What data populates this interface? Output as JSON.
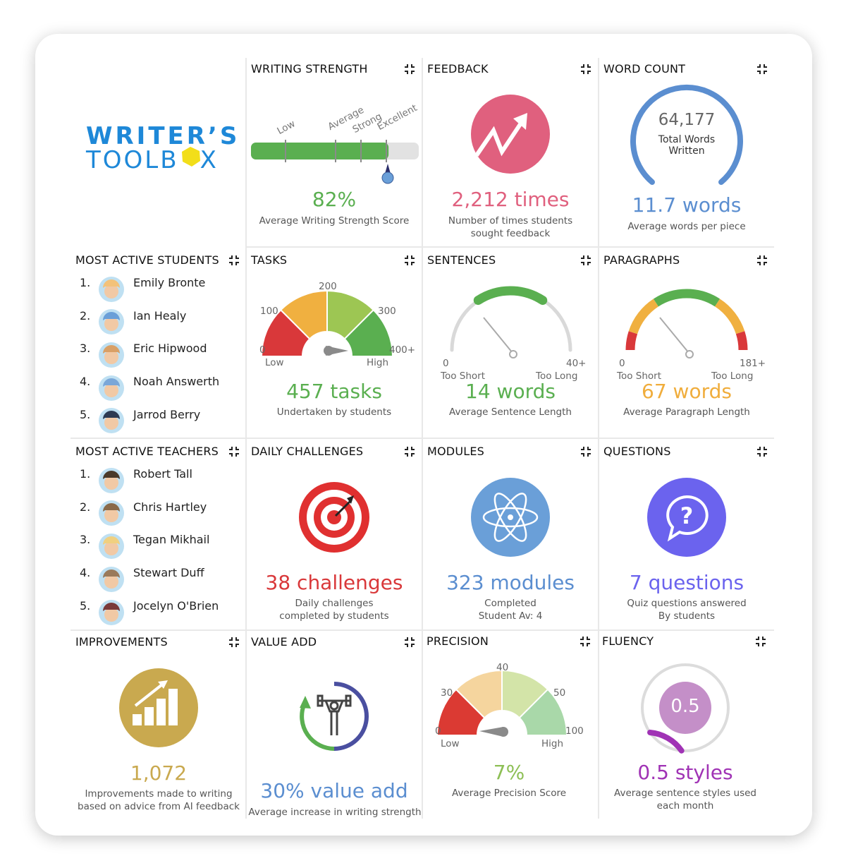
{
  "brand": {
    "line1": "WRITER’S",
    "line2_a": "TOOLB",
    "line2_b": "X",
    "color": "#1e88d8"
  },
  "colors": {
    "green": "#5aaf50",
    "red": "#d9383a",
    "orange": "#f0ad3c",
    "pink": "#e0607e",
    "blue": "#5b8ed0",
    "gold": "#c9a94f",
    "purple": "#a033b5",
    "violet": "#6b63ee"
  },
  "writing_strength": {
    "title": "WRITING STRENGTH",
    "labels": [
      "Low",
      "Average",
      "Strong",
      "Excellent"
    ],
    "value": "82%",
    "value_fraction": 0.82,
    "caption": "Average Writing Strength Score"
  },
  "feedback": {
    "title": "FEEDBACK",
    "icon": "trend-up-icon",
    "value": "2,212 times",
    "caption": "Number of times students sought feedback"
  },
  "word_count": {
    "title": "WORD COUNT",
    "total": "64,177",
    "total_label": "Total Words Written",
    "value": "11.7 words",
    "caption": "Average words per piece"
  },
  "students": {
    "title": "MOST ACTIVE STUDENTS",
    "items": [
      {
        "rank": "1.",
        "name": "Emily Bronte"
      },
      {
        "rank": "2.",
        "name": "Ian Healy"
      },
      {
        "rank": "3.",
        "name": "Eric Hipwood"
      },
      {
        "rank": "4.",
        "name": "Noah Answerth"
      },
      {
        "rank": "5.",
        "name": "Jarrod Berry"
      }
    ]
  },
  "tasks": {
    "title": "TASKS",
    "ticks": [
      "0",
      "100",
      "200",
      "300",
      "400+"
    ],
    "low": "Low",
    "high": "High",
    "value": "457 tasks",
    "caption": "Undertaken by students"
  },
  "sentences": {
    "title": "SENTENCES",
    "min": "0",
    "max": "40+",
    "low": "Too Short",
    "high": "Too Long",
    "value": "14 words",
    "caption": "Average Sentence Length"
  },
  "paragraphs": {
    "title": "PARAGRAPHS",
    "min": "0",
    "max": "181+",
    "low": "Too Short",
    "high": "Too Long",
    "value": "67 words",
    "caption": "Average Paragraph Length"
  },
  "teachers": {
    "title": "MOST ACTIVE TEACHERS",
    "items": [
      {
        "rank": "1.",
        "name": "Robert Tall"
      },
      {
        "rank": "2.",
        "name": "Chris Hartley"
      },
      {
        "rank": "3.",
        "name": "Tegan Mikhail"
      },
      {
        "rank": "4.",
        "name": "Stewart Duff"
      },
      {
        "rank": "5.",
        "name": "Jocelyn O'Brien"
      }
    ]
  },
  "daily_challenges": {
    "title": "DAILY CHALLENGES",
    "icon": "target-icon",
    "value": "38 challenges",
    "caption1": "Daily challenges",
    "caption2": "completed by students"
  },
  "modules": {
    "title": "MODULES",
    "icon": "atom-icon",
    "value": "323 modules",
    "caption1": "Completed",
    "caption2": "Student Av: 4"
  },
  "questions": {
    "title": "QUESTIONS",
    "icon": "question-bubble-icon",
    "value": "7 questions",
    "caption1": "Quiz questions answered",
    "caption2": "By students"
  },
  "improvements": {
    "title": "IMPROVEMENTS",
    "icon": "growth-chart-icon",
    "value": "1,072",
    "caption1": "Improvements made to writing",
    "caption2": "based on advice from AI feedback"
  },
  "value_add": {
    "title": "VALUE ADD",
    "icon": "weightlifter-icon",
    "value": "30% value add",
    "caption": "Average increase in writing strength"
  },
  "precision": {
    "title": "PRECISION",
    "ticks": [
      "0",
      "30",
      "40",
      "50",
      "100"
    ],
    "low": "Low",
    "high": "High",
    "value": "7%",
    "caption": "Average Precision Score"
  },
  "fluency": {
    "title": "FLUENCY",
    "inner": "0.5",
    "value": "0.5 styles",
    "caption1": "Average sentence styles used",
    "caption2": "each month"
  }
}
